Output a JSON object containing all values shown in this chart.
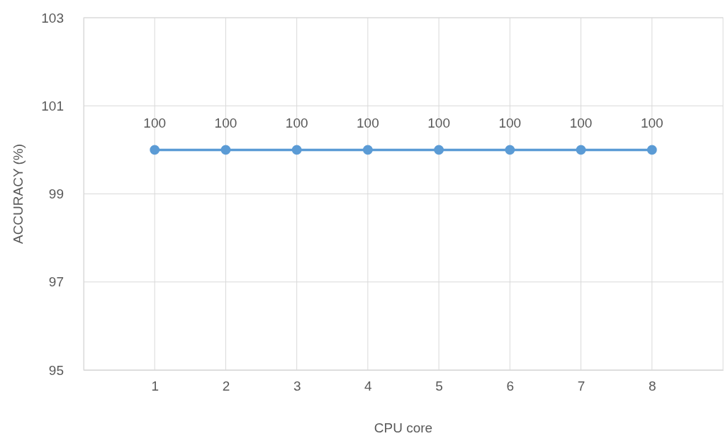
{
  "chart_data": {
    "type": "line",
    "xlabel": "CPU core",
    "ylabel": "ACCURACY (%)",
    "x": [
      1,
      2,
      3,
      4,
      5,
      6,
      7,
      8
    ],
    "series": [
      {
        "color": "#5b9bd5",
        "values": [
          100,
          100,
          100,
          100,
          100,
          100,
          100,
          100
        ]
      }
    ],
    "xlim": [
      0,
      9
    ],
    "xticks": [
      1,
      2,
      3,
      4,
      5,
      6,
      7,
      8
    ],
    "ylim": [
      95,
      103
    ],
    "yticks": [
      95,
      97,
      99,
      101,
      103
    ],
    "grid": true,
    "marker": "circle",
    "line_style": "solid",
    "data_labels": true
  }
}
